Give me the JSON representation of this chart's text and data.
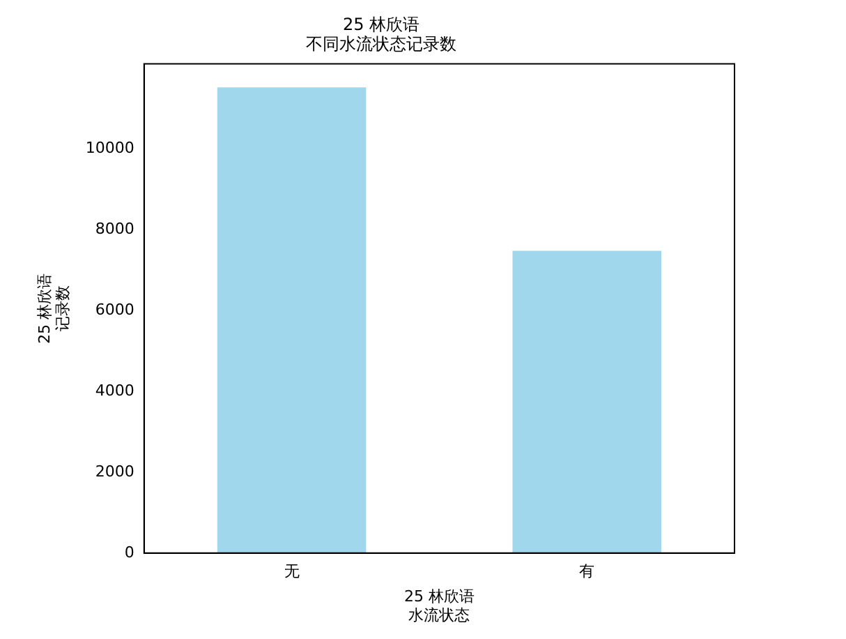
{
  "chart_data": {
    "type": "bar",
    "title": "25 林欣语",
    "subtitle": "不同水流状态记录数",
    "xlabel": "25 林欣语水流状态",
    "ylabel": "25 林欣语记录数",
    "categories": [
      "无",
      "有"
    ],
    "values": [
      11510,
      7470
    ],
    "color": "#a1d7ed",
    "ylim": [
      0,
      12090
    ],
    "yticks": [
      0,
      2000,
      4000,
      6000,
      8000,
      10000
    ],
    "grid": false,
    "legend": false
  }
}
